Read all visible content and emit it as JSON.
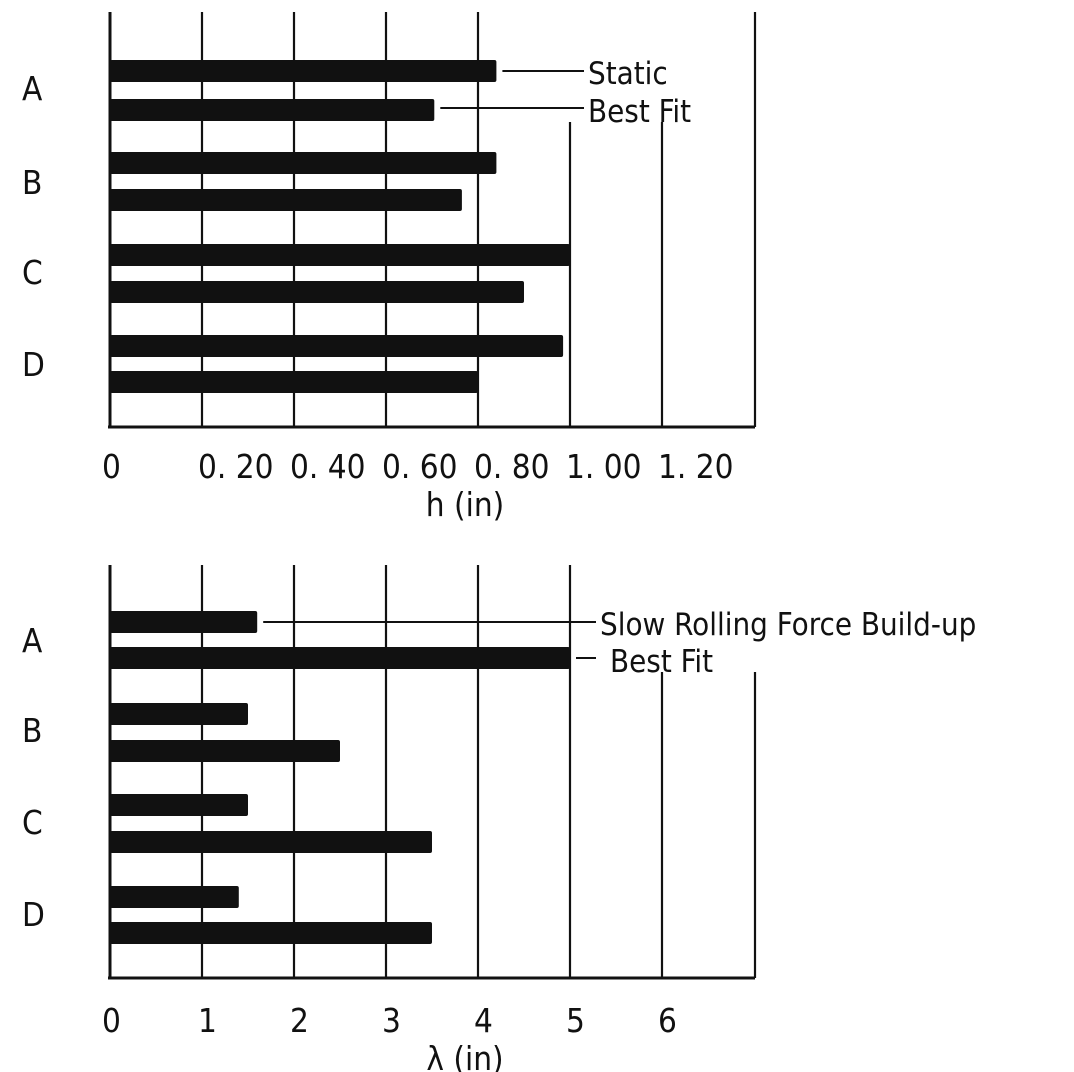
{
  "chart_data": [
    {
      "type": "bar",
      "orientation": "horizontal",
      "title": "",
      "xlabel": "h (in)",
      "ylabel": "",
      "xlim": [
        0,
        1.4
      ],
      "xticks": [
        0,
        0.2,
        0.4,
        0.6,
        0.8,
        1.0,
        1.2
      ],
      "xtick_labels": [
        "0",
        "0. 20",
        "0. 40",
        "0. 60",
        "0. 80",
        "1. 00",
        "1. 20"
      ],
      "categories": [
        "A",
        "B",
        "C",
        "D"
      ],
      "grid": true,
      "series": [
        {
          "name": "Static",
          "values": [
            0.84,
            0.84,
            1.0,
            0.985
          ]
        },
        {
          "name": "Best Fit",
          "values": [
            0.705,
            0.765,
            0.9,
            0.8
          ]
        }
      ],
      "annotations": [
        "Static",
        "Best Fit"
      ]
    },
    {
      "type": "bar",
      "orientation": "horizontal",
      "title": "",
      "xlabel": "λ (in)",
      "ylabel": "",
      "xlim": [
        0,
        7
      ],
      "xticks": [
        0,
        1,
        2,
        3,
        4,
        5,
        6
      ],
      "xtick_labels": [
        "0",
        "1",
        "2",
        "3",
        "4",
        "5",
        "6"
      ],
      "categories": [
        "A",
        "B",
        "C",
        "D"
      ],
      "grid": true,
      "series": [
        {
          "name": "Slow Rolling Force Build-up",
          "values": [
            1.6,
            1.5,
            1.5,
            1.4
          ]
        },
        {
          "name": "Best Fit",
          "values": [
            5.0,
            2.5,
            3.5,
            3.5
          ]
        }
      ],
      "annotations": [
        "Slow Rolling Force Build-up",
        "Best Fit"
      ]
    }
  ]
}
